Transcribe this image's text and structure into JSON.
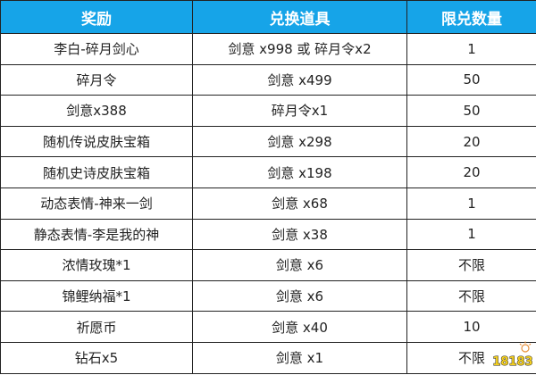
{
  "headers": [
    "奖励",
    "兑换道具",
    "限兑数量"
  ],
  "rows": [
    [
      "李白-碎月剑心",
      "剑意 x998 或 碎月令x2",
      "1"
    ],
    [
      "碎月令",
      "剑意 x499",
      "50"
    ],
    [
      "剑意x388",
      "碎月令x1",
      "50"
    ],
    [
      "随机传说皮肤宝箱",
      "剑意 x298",
      "20"
    ],
    [
      "随机史诗皮肤宝箱",
      "剑意 x198",
      "20"
    ],
    [
      "动态表情-神来一剑",
      "剑意 x68",
      "1"
    ],
    [
      "静态表情-李是我的神",
      "剑意 x38",
      "1"
    ],
    [
      "浓情玫瑰*1",
      "剑意 x6",
      "不限"
    ],
    [
      "锦鲤纳福*1",
      "剑意 x6",
      "不限"
    ],
    [
      "祈愿币",
      "剑意 x40",
      "10"
    ],
    [
      "钻石x5",
      "剑意 x1",
      "不限"
    ]
  ],
  "watermark": "18183",
  "colors": {
    "header_bg": "#16a4e8",
    "header_text": "#ffffff",
    "logo": "#f5d020"
  }
}
